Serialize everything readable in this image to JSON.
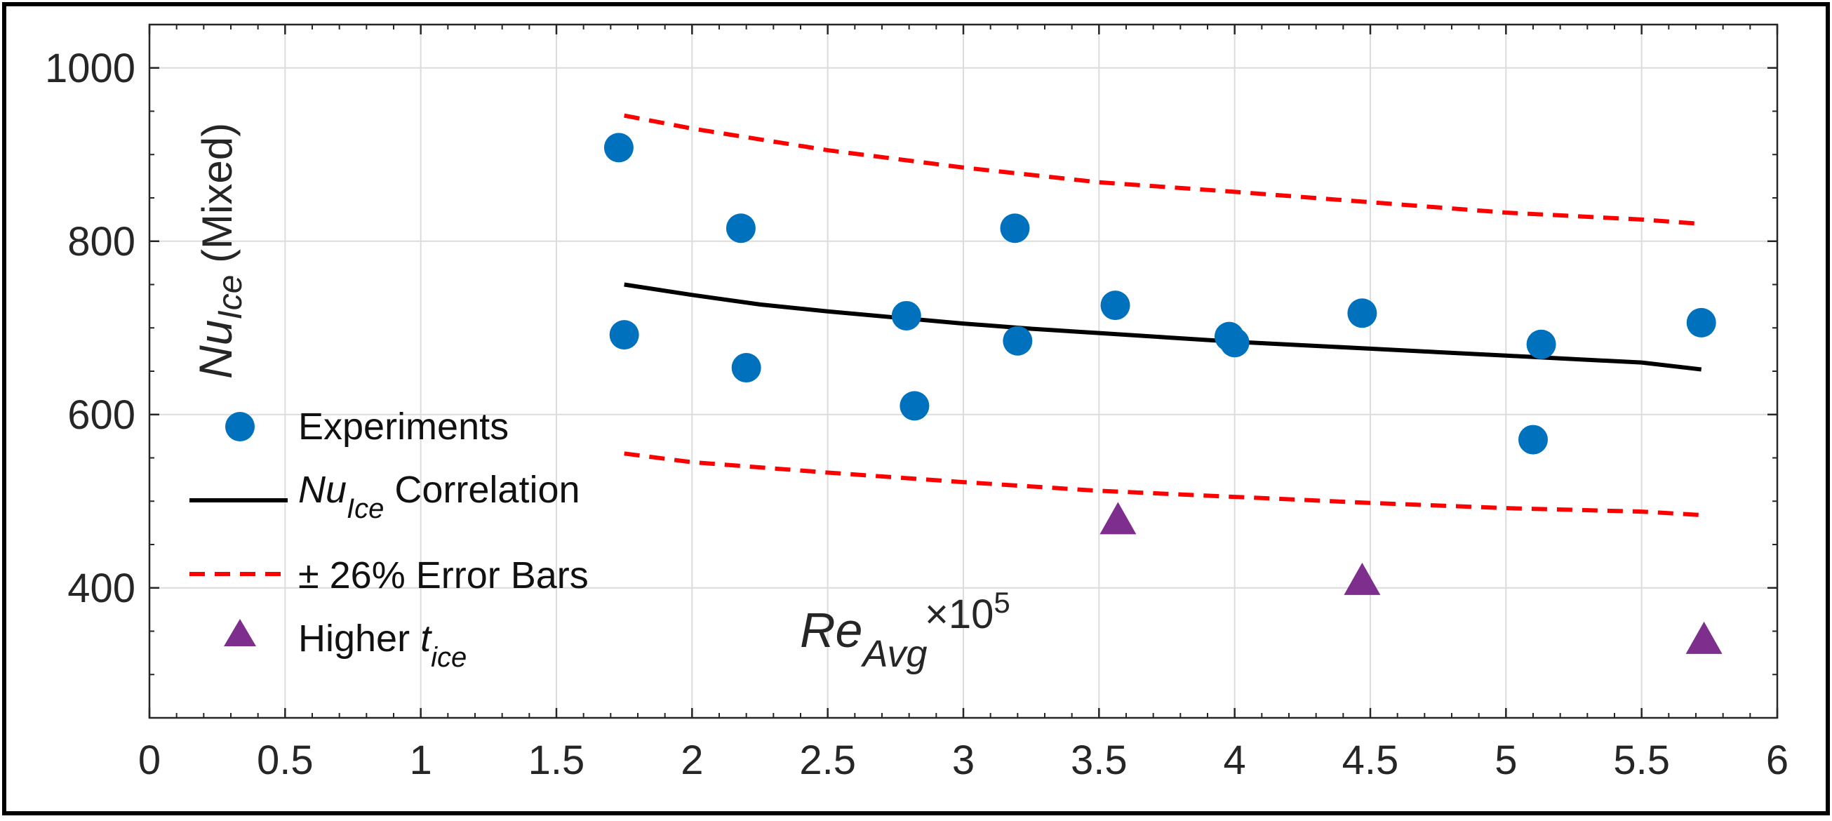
{
  "chart_data": {
    "type": "scatter",
    "title": "",
    "xlabel": {
      "main": "Re",
      "sub": "Avg",
      "multiplier": "×10",
      "multiplier_exp": "5"
    },
    "ylabel": {
      "main": "Nu",
      "sub": "Ice",
      "suffix": " (Mixed)"
    },
    "xlim": [
      0,
      6
    ],
    "ylim": [
      250,
      1050
    ],
    "xticks": [
      0,
      0.5,
      1,
      1.5,
      2,
      2.5,
      3,
      3.5,
      4,
      4.5,
      5,
      5.5,
      6
    ],
    "xtick_labels": [
      "0",
      "0.5",
      "1",
      "1.5",
      "2",
      "2.5",
      "3",
      "3.5",
      "4",
      "4.5",
      "5",
      "5.5",
      "6"
    ],
    "yticks": [
      400,
      600,
      800,
      1000
    ],
    "ytick_labels": [
      "400",
      "600",
      "800",
      "1000"
    ],
    "grid": true,
    "legend_position": "left",
    "series": [
      {
        "name": "Experiments",
        "kind": "marker-circle",
        "color": "#0072BD",
        "x": [
          1.73,
          1.75,
          2.18,
          2.2,
          2.79,
          2.82,
          3.19,
          3.2,
          3.56,
          3.98,
          4.0,
          4.47,
          5.1,
          5.13,
          5.72
        ],
        "y": [
          908,
          692,
          815,
          654,
          714,
          610,
          815,
          685,
          726,
          690,
          683,
          717,
          571,
          681,
          706
        ]
      },
      {
        "name": "Correlation",
        "legend_prefix": "Nu",
        "legend_sub": "Ice",
        "legend_label": " Correlation",
        "kind": "line-solid",
        "color": "#000000",
        "x": [
          1.75,
          2.0,
          2.25,
          2.5,
          2.75,
          3.0,
          3.25,
          3.5,
          3.75,
          4.0,
          4.25,
          4.5,
          4.75,
          5.0,
          5.25,
          5.5,
          5.72
        ],
        "y": [
          750,
          738,
          727,
          719,
          712,
          705,
          699,
          694,
          689,
          684,
          680,
          676,
          672,
          668,
          664,
          660,
          652
        ]
      },
      {
        "name": "± 26% Error Bars",
        "kind": "line-dashed",
        "color": "#FF0000",
        "x": [
          1.75,
          2.0,
          2.5,
          3.0,
          3.5,
          4.0,
          4.5,
          5.0,
          5.5,
          5.72
        ],
        "y_upper": [
          945,
          930,
          905,
          885,
          868,
          857,
          845,
          833,
          825,
          820
        ],
        "y_lower": [
          555,
          545,
          533,
          522,
          512,
          505,
          498,
          492,
          488,
          484
        ]
      },
      {
        "name": "Higher",
        "legend_prefix": "Higher ",
        "legend_var": "t",
        "legend_sub": "ice",
        "kind": "marker-triangle",
        "color": "#7E2F8E",
        "x": [
          3.57,
          4.47,
          5.73
        ],
        "y": [
          478,
          408,
          340
        ]
      }
    ]
  }
}
